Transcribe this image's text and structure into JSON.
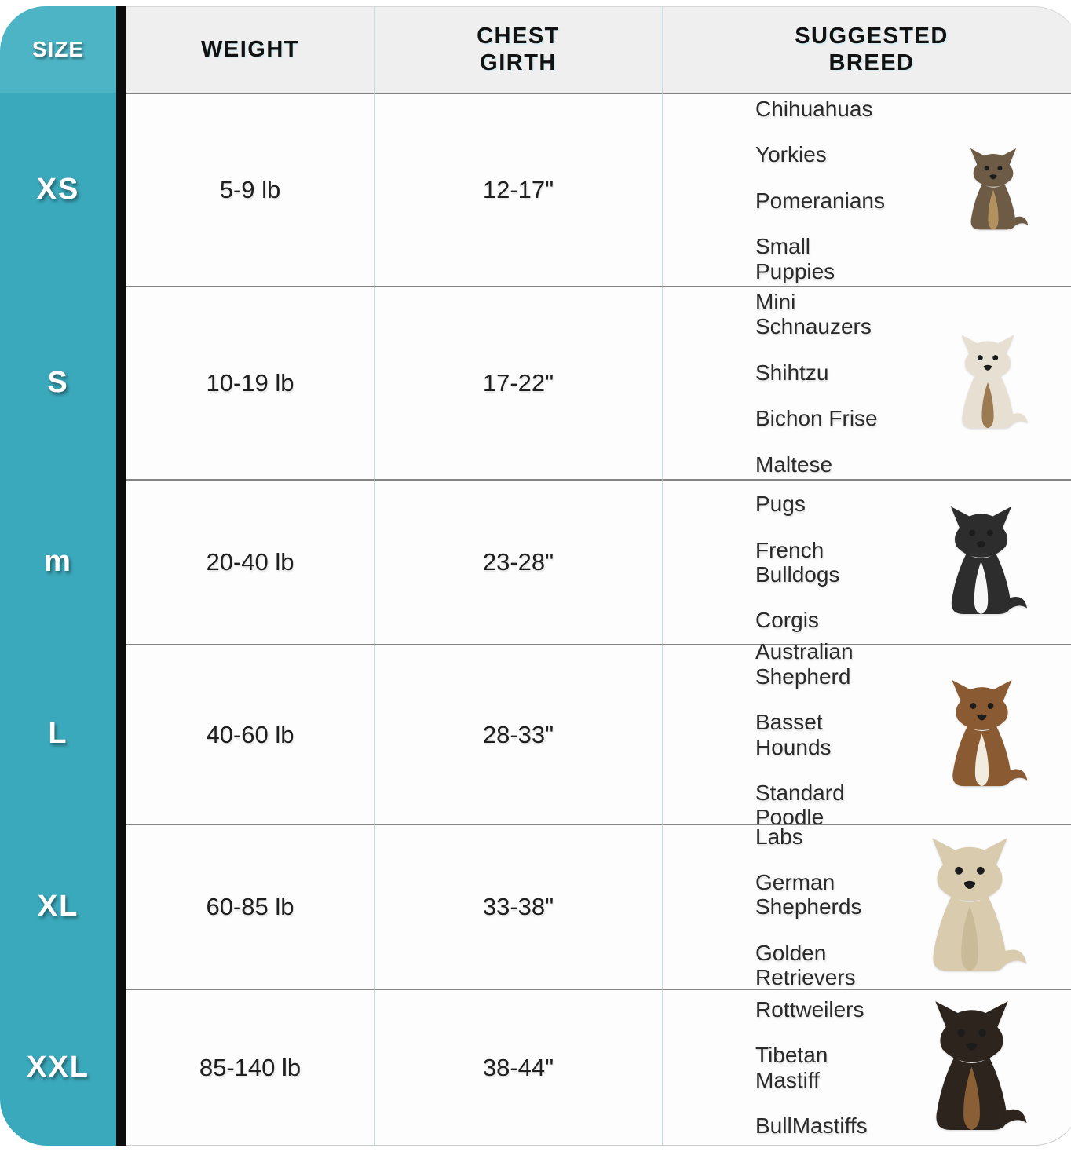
{
  "header": {
    "size": "SIZE",
    "weight": "WEIGHT",
    "chest_girth": "CHEST GIRTH",
    "suggested_breed": "SUGGESTED BREED"
  },
  "rows": [
    {
      "size": "XS",
      "weight": "5-9 lb",
      "chest_girth": "12-17\"",
      "breeds": [
        "Chihuahuas",
        "Yorkies",
        "Pomeranians",
        "Small\nPuppies"
      ],
      "dog_icon": "yorkshire-terrier-icon",
      "dog_colors": {
        "c1": "#6e5b46",
        "c2": "#b3915e"
      }
    },
    {
      "size": "S",
      "weight": "10-19 lb",
      "chest_girth": "17-22\"",
      "breeds": [
        "Mini\nSchnauzers",
        "Shihtzu",
        "Bichon Frise",
        "Maltese"
      ],
      "dog_icon": "shih-tzu-icon",
      "dog_colors": {
        "c1": "#e7e0d2",
        "c2": "#9c7a52"
      }
    },
    {
      "size": "m",
      "weight": "20-40 lb",
      "chest_girth": "23-28\"",
      "breeds": [
        "Pugs",
        "French\nBulldogs",
        "Corgis"
      ],
      "dog_icon": "boston-terrier-icon",
      "dog_colors": {
        "c1": "#2d2d2d",
        "c2": "#f7f7f7"
      }
    },
    {
      "size": "L",
      "weight": "40-60 lb",
      "chest_girth": "28-33\"",
      "breeds": [
        "Australian\nShepherd",
        "Basset\nHounds",
        "Standard\nPoodle"
      ],
      "dog_icon": "basset-hound-icon",
      "dog_colors": {
        "c1": "#8a5a33",
        "c2": "#f2ece0"
      }
    },
    {
      "size": "XL",
      "weight": "60-85 lb",
      "chest_girth": "33-38\"",
      "breeds": [
        "Labs",
        "German\nShepherds",
        "Golden\nRetrievers"
      ],
      "dog_icon": "labrador-retriever-icon",
      "dog_colors": {
        "c1": "#d8cbae",
        "c2": "#c9ba98"
      }
    },
    {
      "size": "XXL",
      "weight": "85-140 lb",
      "chest_girth": "38-44\"",
      "breeds": [
        "Rottweilers",
        "Tibetan\nMastiff",
        "BullMastiffs"
      ],
      "dog_icon": "tibetan-mastiff-icon",
      "dog_colors": {
        "c1": "#2c241d",
        "c2": "#8a5f35"
      }
    }
  ],
  "colors": {
    "sidebar_teal": "#3aa9bb",
    "header_teal": "#4db4c5",
    "black_bar": "#0c0c0c",
    "header_bg": "#efefef",
    "row_divider": "#848484",
    "column_divider": "#bfe0e6",
    "text_dark": "#1f1f1f"
  }
}
